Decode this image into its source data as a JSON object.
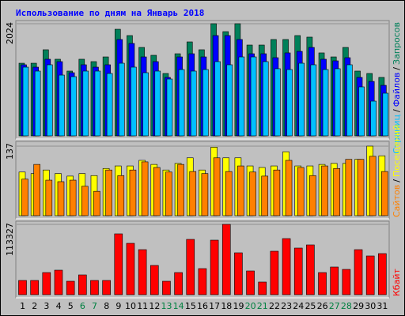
{
  "chart_data": [
    {
      "type": "bar",
      "title": "Использование по дням на Январь 2018",
      "title_color": "#0000ff",
      "legend_separator": "/",
      "series": [
        {
          "name": "Запросов",
          "color": "#00805a",
          "values": [
            1311,
            1311,
            1554,
            1383,
            1169,
            1383,
            1340,
            1425,
            1924,
            1810,
            1596,
            1454,
            1126,
            1482,
            1696,
            1554,
            2024,
            1881,
            2024,
            1639,
            1639,
            1739,
            1739,
            1810,
            1782,
            1497,
            1425,
            1596,
            1169,
            1126,
            1055
          ]
        },
        {
          "name": "Файлов",
          "color": "#0000ff",
          "values": [
            1283,
            1240,
            1383,
            1340,
            1140,
            1283,
            1240,
            1283,
            1739,
            1668,
            1425,
            1340,
            1055,
            1425,
            1482,
            1425,
            1810,
            1810,
            1739,
            1482,
            1482,
            1411,
            1497,
            1525,
            1596,
            1383,
            1354,
            1411,
            1055,
            983,
            912
          ]
        },
        {
          "name": "Страниц",
          "color": "#00c0ff",
          "values": [
            1240,
            1169,
            1283,
            1097,
            1069,
            1169,
            1169,
            1126,
            1311,
            1240,
            1140,
            1169,
            1026,
            1197,
            1169,
            1197,
            1340,
            1283,
            1425,
            1425,
            1340,
            1212,
            1197,
            1311,
            1283,
            1197,
            1212,
            1283,
            884,
            627,
            770
          ]
        }
      ],
      "ylim": [
        0,
        2024
      ],
      "yticks": [
        2024
      ]
    },
    {
      "type": "bar",
      "legend_separator": "/",
      "series": [
        {
          "name": "Посещений",
          "color": "#ffff00",
          "values": [
            86,
            83,
            90,
            83,
            78,
            83,
            79,
            93,
            98,
            98,
            109,
            101,
            90,
            103,
            114,
            90,
            135,
            114,
            114,
            98,
            95,
            98,
            126,
            98,
            98,
            101,
            103,
            103,
            111,
            137,
            118
          ]
        },
        {
          "name": "Сайтов",
          "color": "#ff8000",
          "values": [
            72,
            101,
            70,
            67,
            70,
            58,
            48,
            90,
            79,
            90,
            106,
            95,
            86,
            101,
            87,
            83,
            114,
            87,
            98,
            86,
            78,
            90,
            109,
            95,
            79,
            98,
            93,
            111,
            111,
            117,
            87
          ]
        }
      ],
      "ylim": [
        0,
        137
      ],
      "yticks": [
        137
      ]
    },
    {
      "type": "bar",
      "categories": [
        "1",
        "2",
        "3",
        "4",
        "5",
        "6",
        "7",
        "8",
        "9",
        "10",
        "11",
        "12",
        "13",
        "14",
        "15",
        "16",
        "17",
        "18",
        "19",
        "20",
        "21",
        "22",
        "23",
        "24",
        "25",
        "26",
        "27",
        "28",
        "29",
        "30",
        "31"
      ],
      "category_colors": [
        "#000000",
        "#000000",
        "#000000",
        "#000000",
        "#000000",
        "#008040",
        "#008040",
        "#000000",
        "#000000",
        "#000000",
        "#000000",
        "#000000",
        "#008040",
        "#008040",
        "#000000",
        "#000000",
        "#000000",
        "#000000",
        "#000000",
        "#008040",
        "#008040",
        "#000000",
        "#000000",
        "#000000",
        "#000000",
        "#000000",
        "#008040",
        "#008040",
        "#000000",
        "#000000",
        "#000000"
      ],
      "series": [
        {
          "name": "Кбайт",
          "color": "#ff0000",
          "values": [
            22920,
            22920,
            35652,
            39472,
            21646,
            31833,
            22920,
            22920,
            98044,
            82766,
            72579,
            47112,
            21646,
            35652,
            89133,
            42019,
            87860,
            113327,
            67486,
            38199,
            20373,
            70032,
            90406,
            75126,
            80219,
            35652,
            44566,
            40746,
            72579,
            62393,
            66213
          ]
        }
      ],
      "ylim": [
        0,
        113327
      ],
      "yticks": [
        113327
      ]
    }
  ]
}
